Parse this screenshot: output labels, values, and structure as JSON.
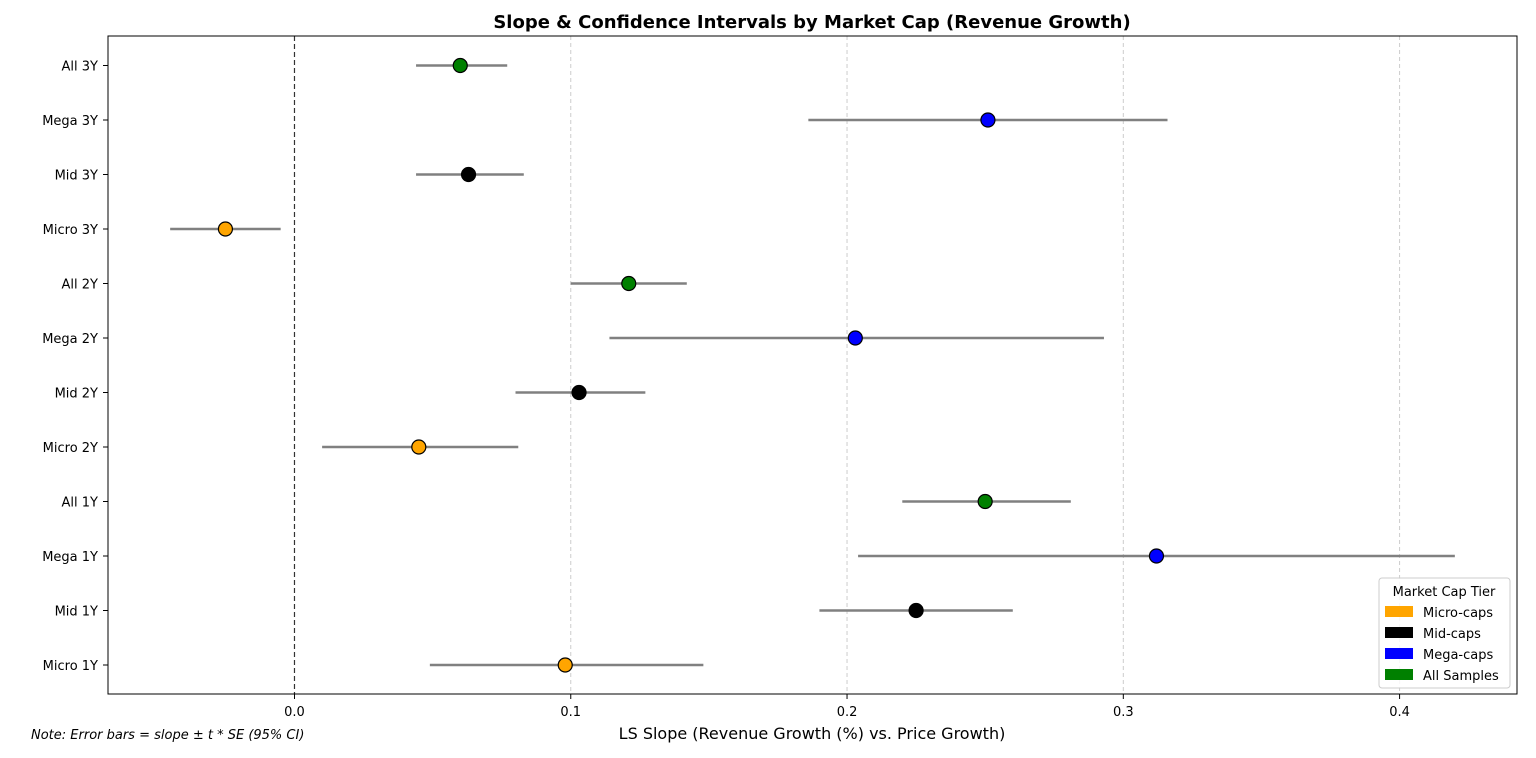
{
  "chart_data": {
    "type": "scatter",
    "title": "Slope & Confidence Intervals by Market Cap (Revenue Growth)",
    "xlabel": "LS Slope (Revenue Growth (%) vs. Price Growth)",
    "ylabel": "",
    "xlim": [
      -0.0675,
      0.4425
    ],
    "xticks": [
      0.0,
      0.1,
      0.2,
      0.3,
      0.4
    ],
    "xtick_labels": [
      "0.0",
      "0.1",
      "0.2",
      "0.3",
      "0.4"
    ],
    "grid": "x-dashed",
    "reference_line_x": 0,
    "note": "Note: Error bars = slope ± t * SE (95% CI)",
    "legend": {
      "title": "Market Cap Tier",
      "placement": "lower-right",
      "entries": [
        {
          "label": "Micro-caps",
          "color": "#ffa500"
        },
        {
          "label": "Mid-caps",
          "color": "#000000"
        },
        {
          "label": "Mega-caps",
          "color": "#0000ff"
        },
        {
          "label": "All Samples",
          "color": "#008000"
        }
      ]
    },
    "errorbar_color": "#808080",
    "categories": [
      "Micro 1Y",
      "Mid 1Y",
      "Mega 1Y",
      "All 1Y",
      "Micro 2Y",
      "Mid 2Y",
      "Mega 2Y",
      "All 2Y",
      "Micro 3Y",
      "Mid 3Y",
      "Mega 3Y",
      "All 3Y"
    ],
    "points": [
      {
        "label": "Micro 1Y",
        "tier": "Micro-caps",
        "slope": 0.098,
        "ci_low": 0.049,
        "ci_high": 0.148
      },
      {
        "label": "Mid 1Y",
        "tier": "Mid-caps",
        "slope": 0.225,
        "ci_low": 0.19,
        "ci_high": 0.26
      },
      {
        "label": "Mega 1Y",
        "tier": "Mega-caps",
        "slope": 0.312,
        "ci_low": 0.204,
        "ci_high": 0.42
      },
      {
        "label": "All 1Y",
        "tier": "All Samples",
        "slope": 0.25,
        "ci_low": 0.22,
        "ci_high": 0.281
      },
      {
        "label": "Micro 2Y",
        "tier": "Micro-caps",
        "slope": 0.045,
        "ci_low": 0.01,
        "ci_high": 0.081
      },
      {
        "label": "Mid 2Y",
        "tier": "Mid-caps",
        "slope": 0.103,
        "ci_low": 0.08,
        "ci_high": 0.127
      },
      {
        "label": "Mega 2Y",
        "tier": "Mega-caps",
        "slope": 0.203,
        "ci_low": 0.114,
        "ci_high": 0.293
      },
      {
        "label": "All 2Y",
        "tier": "All Samples",
        "slope": 0.121,
        "ci_low": 0.1,
        "ci_high": 0.142
      },
      {
        "label": "Micro 3Y",
        "tier": "Micro-caps",
        "slope": -0.025,
        "ci_low": -0.045,
        "ci_high": -0.005
      },
      {
        "label": "Mid 3Y",
        "tier": "Mid-caps",
        "slope": 0.063,
        "ci_low": 0.044,
        "ci_high": 0.083
      },
      {
        "label": "Mega 3Y",
        "tier": "Mega-caps",
        "slope": 0.251,
        "ci_low": 0.186,
        "ci_high": 0.316
      },
      {
        "label": "All 3Y",
        "tier": "All Samples",
        "slope": 0.06,
        "ci_low": 0.044,
        "ci_high": 0.077
      }
    ]
  }
}
